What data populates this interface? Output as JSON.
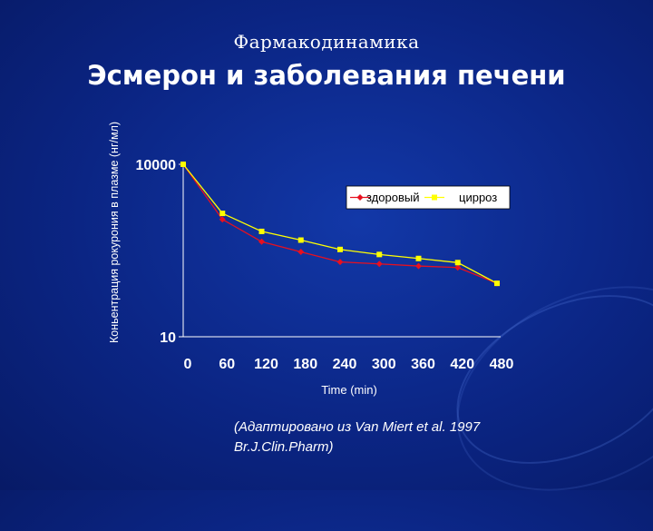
{
  "slide": {
    "subtitle": "Фармакодинамика",
    "title": "Эсмерон и заболевания печени",
    "footnote_line1": "(Адаптировано из Van Miert et al. 1997",
    "footnote_line2": "Br.J.Clin.Pharm)"
  },
  "chart_data": {
    "type": "line",
    "ylabel": "Коньентрация рокурония в плазме (нг/мл)",
    "xlabel": "Time (min)",
    "yscale": "log",
    "ylim": [
      10,
      10000
    ],
    "ytick_labels": [
      "10000",
      "10"
    ],
    "yticks": [
      10000,
      10
    ],
    "x": [
      0,
      60,
      120,
      180,
      240,
      300,
      360,
      420,
      480
    ],
    "x_tick_labels": [
      "0",
      "60",
      "120",
      "180",
      "240",
      "300",
      "360",
      "420",
      "480"
    ],
    "legend_position": "upper-right",
    "series": [
      {
        "name": "здоровый",
        "color": "#e8101f",
        "marker": "diamond",
        "values": [
          10000,
          1100,
          450,
          300,
          200,
          185,
          170,
          160,
          85
        ]
      },
      {
        "name": "цирроз",
        "color": "#ffff00",
        "marker": "square",
        "values": [
          10000,
          1400,
          680,
          480,
          330,
          270,
          230,
          195,
          85
        ]
      }
    ]
  }
}
